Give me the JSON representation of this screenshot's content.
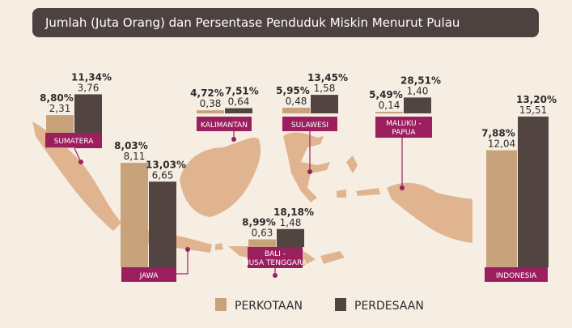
{
  "title": "Jumlah (Juta Orang) dan Persentase Penduduk Miskin Menurut Pulau",
  "colors": {
    "perkotaan": "#c8a27a",
    "perdesaan": "#524541",
    "label_bg": "#9b1f5f",
    "map": "#dfb48f",
    "background": "#f7eee3",
    "title_bg": "#4e4240"
  },
  "chart_data": {
    "type": "bar",
    "title": "Jumlah (Juta Orang) dan Persentase Penduduk Miskin Menurut Pulau",
    "categories": [
      "SUMATERA",
      "JAWA",
      "KALIMANTAN",
      "SULAWESI",
      "MALUKU - PAPUA",
      "BALI - NUSA TENGGARA",
      "INDONESIA"
    ],
    "legend_position": "bottom",
    "series": [
      {
        "name": "PERKOTAAN",
        "values": [
          2.31,
          8.11,
          0.38,
          0.48,
          0.14,
          0.63,
          12.04
        ],
        "value_labels": [
          "2,31",
          "8,11",
          "0,38",
          "0,48",
          "0,14",
          "0,63",
          "12,04"
        ],
        "percent_labels": [
          "8,80%",
          "8,03%",
          "4,72%",
          "5,95%",
          "5,49%",
          "8,99%",
          "7,88%"
        ]
      },
      {
        "name": "PERDESAAN",
        "values": [
          3.76,
          6.65,
          0.64,
          1.58,
          1.4,
          1.48,
          15.51
        ],
        "value_labels": [
          "3,76",
          "6,65",
          "0,64",
          "1,58",
          "1,40",
          "1,48",
          "15,51"
        ],
        "percent_labels": [
          "11,34%",
          "13,03%",
          "7,51%",
          "13,45%",
          "28,51%",
          "18,18%",
          "13,20%"
        ]
      }
    ]
  }
}
